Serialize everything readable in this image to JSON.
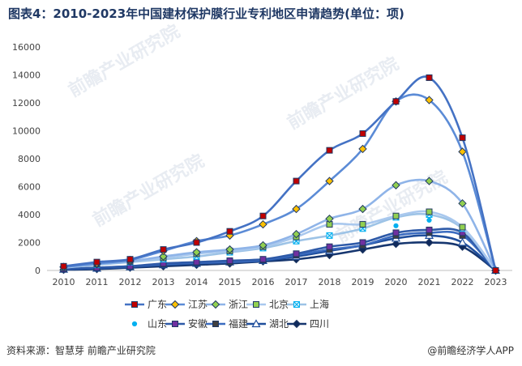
{
  "title": "图表4：2010-2023年中国建材保护膜行业专利地区申请趋势(单位：项)",
  "watermark": "前瞻产业研究院",
  "footer": {
    "source": "资料来源：智慧芽 前瞻产业研究院",
    "brand": "@前瞻经济学人APP"
  },
  "chart_data": {
    "type": "line",
    "categories": [
      "2010",
      "2011",
      "2012",
      "2013",
      "2014",
      "2015",
      "2016",
      "2017",
      "2018",
      "2019",
      "2020",
      "2021",
      "2022",
      "2023"
    ],
    "ylim": [
      0,
      16000
    ],
    "yticks": [
      0,
      2000,
      4000,
      6000,
      8000,
      10000,
      12000,
      14000,
      16000
    ],
    "xlabel": "",
    "ylabel": "",
    "legend_position": "bottom",
    "grid": false,
    "series": [
      {
        "name": "广东",
        "color": "#4472c4",
        "marker": "square",
        "marker_color": "#c00000",
        "values": [
          300,
          600,
          800,
          1500,
          2000,
          2800,
          3900,
          6400,
          8600,
          9800,
          12100,
          13800,
          9500,
          0
        ]
      },
      {
        "name": "江苏",
        "color": "#5b8bd6",
        "marker": "diamond",
        "marker_color": "#ffc000",
        "values": [
          250,
          500,
          750,
          1400,
          2100,
          2500,
          3300,
          4400,
          6400,
          8700,
          12100,
          12200,
          8500,
          0
        ]
      },
      {
        "name": "浙江",
        "color": "#8fb4e8",
        "marker": "diamond",
        "marker_color": "#92d050",
        "values": [
          250,
          450,
          650,
          1000,
          1300,
          1500,
          1800,
          2600,
          3700,
          4400,
          6100,
          6400,
          4800,
          0
        ]
      },
      {
        "name": "北京",
        "color": "#a9c8ee",
        "marker": "square",
        "marker_color": "#92d050",
        "values": [
          200,
          450,
          650,
          900,
          1200,
          1400,
          1700,
          2400,
          3300,
          3300,
          3900,
          4200,
          3100,
          0
        ]
      },
      {
        "name": "上海",
        "color": "#9dc3e6",
        "marker": "x",
        "marker_color": "#00b0f0",
        "values": [
          200,
          400,
          600,
          800,
          1000,
          1300,
          1600,
          2100,
          2500,
          3000,
          3800,
          4000,
          3000,
          0
        ]
      },
      {
        "name": "山东",
        "color": "#00b0f0",
        "marker": "dot",
        "marker_color": "#00b0f0",
        "values": [
          null,
          null,
          null,
          null,
          null,
          null,
          null,
          null,
          null,
          null,
          3200,
          3600,
          null,
          null
        ]
      },
      {
        "name": "安徽",
        "color": "#2e5aa8",
        "marker": "square",
        "marker_color": "#7030a0",
        "values": [
          100,
          200,
          300,
          500,
          600,
          700,
          800,
          1200,
          1700,
          2000,
          2700,
          2900,
          2700,
          0
        ]
      },
      {
        "name": "福建",
        "color": "#3b6cc0",
        "marker": "square",
        "marker_color": "#404040",
        "values": [
          100,
          200,
          300,
          450,
          550,
          600,
          750,
          1100,
          1500,
          1800,
          2500,
          2700,
          2500,
          0
        ]
      },
      {
        "name": "湖北",
        "color": "#1f4e9c",
        "marker": "triangle",
        "marker_color": "#ffffff",
        "values": [
          80,
          150,
          250,
          400,
          500,
          600,
          700,
          1000,
          1400,
          1800,
          2300,
          2500,
          2000,
          0
        ]
      },
      {
        "name": "四川",
        "color": "#16366f",
        "marker": "diamond",
        "marker_color": "#0f2a5c",
        "values": [
          50,
          100,
          200,
          300,
          400,
          500,
          650,
          800,
          1100,
          1500,
          1900,
          2000,
          1700,
          0
        ]
      }
    ]
  }
}
